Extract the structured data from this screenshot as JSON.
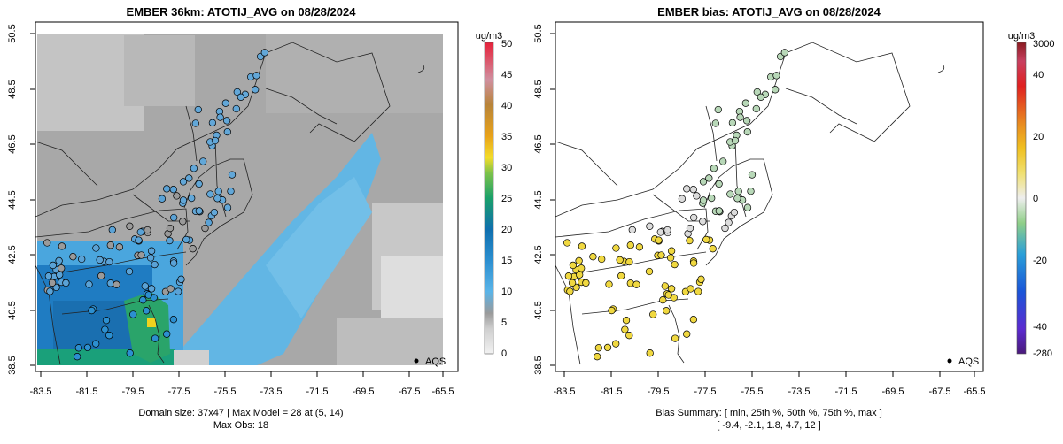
{
  "chart_data": [
    {
      "type": "heatmap",
      "title": "EMBER 36km: ATOTIJ_AVG on 08/28/2024",
      "x_ticks": [
        "-83.5",
        "-81.5",
        "-79.5",
        "-77.5",
        "-75.5",
        "-73.5",
        "-71.5",
        "-69.5",
        "-67.5",
        "-65.5"
      ],
      "y_ticks": [
        "38.5",
        "40.5",
        "42.5",
        "44.5",
        "46.5",
        "48.5",
        "50.5"
      ],
      "xlim": [
        -84.3,
        -65.0
      ],
      "ylim": [
        38.3,
        50.8
      ],
      "colorbar_unit": "ug/m3",
      "colorbar_ticks": [
        "0",
        "5",
        "10",
        "15",
        "20",
        "25",
        "30",
        "35",
        "40",
        "45",
        "50"
      ],
      "legend_label": "AQS",
      "footer_line1": "Domain size: 37x47 | Max Model = 28 at (5, 14)",
      "footer_line2": "Max Obs: 18"
    },
    {
      "type": "scatter",
      "title": "EMBER bias: ATOTIJ_AVG on 08/28/2024",
      "x_ticks": [
        "-83.5",
        "-81.5",
        "-79.5",
        "-77.5",
        "-75.5",
        "-73.5",
        "-71.5",
        "-69.5",
        "-67.5",
        "-65.5"
      ],
      "y_ticks": [
        "38.5",
        "40.5",
        "42.5",
        "44.5",
        "46.5",
        "48.5",
        "50.5"
      ],
      "xlim": [
        -84.3,
        -65.0
      ],
      "ylim": [
        38.3,
        50.8
      ],
      "colorbar_unit": "ug/m3",
      "colorbar_ticks": [
        "3000",
        "40",
        "20",
        "0",
        "-20",
        "-40",
        "-280"
      ],
      "legend_label": "AQS",
      "footer_line1": "Bias Summary: [ min, 25th %, 50th %, 75th %, max ]",
      "footer_line2": "[ -9.4,   -2.1,   1.8,   4.7,   12 ]",
      "bias_summary": {
        "min": -9.4,
        "p25": -2.1,
        "p50": 1.8,
        "p75": 4.7,
        "max": 12
      }
    }
  ],
  "colors": {
    "frame": "#000000",
    "map_line": "#222222"
  }
}
